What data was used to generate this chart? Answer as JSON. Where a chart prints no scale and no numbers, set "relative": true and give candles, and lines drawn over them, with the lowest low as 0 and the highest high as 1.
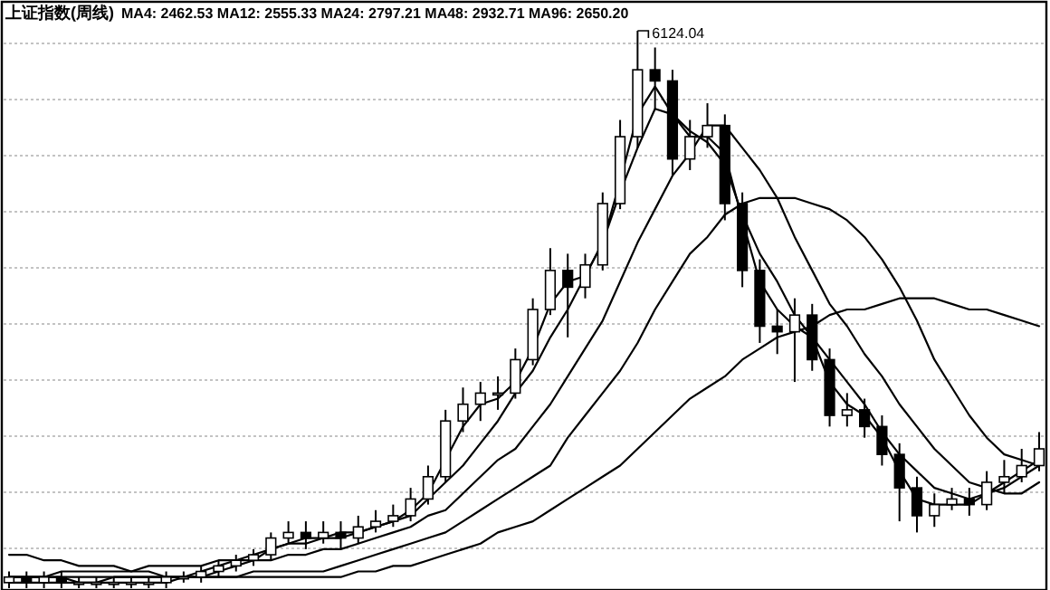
{
  "chart_data": {
    "type": "candlestick",
    "title": "上证指数(周线)",
    "subtitle": "MA4: 2462.53  MA12: 2555.33  MA24: 2797.21  MA48: 2932.71  MA96: 2650.20",
    "relative": true,
    "grid": "y",
    "color": "#000000",
    "categories": [
      null,
      null,
      null,
      null,
      null,
      null,
      null,
      null,
      null,
      null,
      null,
      null,
      null,
      null,
      null,
      null,
      null,
      null,
      null,
      null,
      null,
      null,
      null,
      null,
      null,
      null,
      null,
      null,
      null,
      null,
      null,
      null,
      null,
      null,
      null,
      null,
      null,
      null,
      null,
      null,
      null,
      null,
      null,
      null,
      null,
      null,
      null,
      null,
      null,
      null,
      null,
      null,
      null,
      null,
      null,
      null,
      null,
      null,
      null,
      null
    ],
    "ohlc": [
      [
        0.01,
        0.03,
        0.0,
        0.02
      ],
      [
        0.02,
        0.03,
        0.0,
        0.01
      ],
      [
        0.01,
        0.03,
        0.0,
        0.02
      ],
      [
        0.02,
        0.03,
        0.0,
        0.01
      ],
      [
        0.01,
        0.02,
        0.0,
        0.01
      ],
      [
        0.01,
        0.02,
        0.0,
        0.01
      ],
      [
        0.01,
        0.02,
        0.0,
        0.01
      ],
      [
        0.01,
        0.02,
        0.0,
        0.01
      ],
      [
        0.01,
        0.02,
        0.0,
        0.01
      ],
      [
        0.01,
        0.03,
        0.0,
        0.02
      ],
      [
        0.02,
        0.03,
        0.01,
        0.02
      ],
      [
        0.02,
        0.04,
        0.01,
        0.03
      ],
      [
        0.03,
        0.05,
        0.02,
        0.04
      ],
      [
        0.04,
        0.06,
        0.03,
        0.05
      ],
      [
        0.05,
        0.07,
        0.04,
        0.06
      ],
      [
        0.06,
        0.1,
        0.05,
        0.09
      ],
      [
        0.09,
        0.12,
        0.08,
        0.1
      ],
      [
        0.1,
        0.12,
        0.07,
        0.09
      ],
      [
        0.09,
        0.12,
        0.08,
        0.1
      ],
      [
        0.1,
        0.12,
        0.07,
        0.09
      ],
      [
        0.09,
        0.13,
        0.08,
        0.11
      ],
      [
        0.11,
        0.14,
        0.1,
        0.12
      ],
      [
        0.12,
        0.15,
        0.11,
        0.13
      ],
      [
        0.13,
        0.18,
        0.12,
        0.16
      ],
      [
        0.16,
        0.22,
        0.15,
        0.2
      ],
      [
        0.2,
        0.32,
        0.19,
        0.3
      ],
      [
        0.3,
        0.36,
        0.28,
        0.33
      ],
      [
        0.33,
        0.37,
        0.3,
        0.35
      ],
      [
        0.35,
        0.38,
        0.32,
        0.35
      ],
      [
        0.35,
        0.43,
        0.34,
        0.41
      ],
      [
        0.41,
        0.52,
        0.4,
        0.5
      ],
      [
        0.5,
        0.61,
        0.49,
        0.57
      ],
      [
        0.57,
        0.6,
        0.45,
        0.54
      ],
      [
        0.54,
        0.6,
        0.52,
        0.58
      ],
      [
        0.58,
        0.71,
        0.57,
        0.69
      ],
      [
        0.69,
        0.84,
        0.68,
        0.81
      ],
      [
        0.81,
        1.0,
        0.79,
        0.93
      ],
      [
        0.93,
        0.97,
        0.86,
        0.91
      ],
      [
        0.91,
        0.93,
        0.74,
        0.77
      ],
      [
        0.77,
        0.84,
        0.75,
        0.81
      ],
      [
        0.81,
        0.87,
        0.79,
        0.83
      ],
      [
        0.83,
        0.85,
        0.66,
        0.69
      ],
      [
        0.69,
        0.71,
        0.54,
        0.57
      ],
      [
        0.57,
        0.59,
        0.44,
        0.47
      ],
      [
        0.47,
        0.5,
        0.42,
        0.46
      ],
      [
        0.46,
        0.52,
        0.37,
        0.49
      ],
      [
        0.49,
        0.51,
        0.39,
        0.41
      ],
      [
        0.41,
        0.43,
        0.29,
        0.31
      ],
      [
        0.31,
        0.35,
        0.29,
        0.32
      ],
      [
        0.32,
        0.34,
        0.27,
        0.29
      ],
      [
        0.29,
        0.31,
        0.22,
        0.24
      ],
      [
        0.24,
        0.26,
        0.12,
        0.18
      ],
      [
        0.18,
        0.2,
        0.1,
        0.13
      ],
      [
        0.13,
        0.17,
        0.11,
        0.15
      ],
      [
        0.15,
        0.18,
        0.14,
        0.16
      ],
      [
        0.16,
        0.18,
        0.13,
        0.15
      ],
      [
        0.15,
        0.21,
        0.14,
        0.19
      ],
      [
        0.19,
        0.23,
        0.17,
        0.2
      ],
      [
        0.2,
        0.25,
        0.19,
        0.22
      ],
      [
        0.22,
        0.28,
        0.21,
        0.25
      ]
    ],
    "series": [
      {
        "type": "line",
        "color": "#000000",
        "values": [
          0.02,
          0.02,
          0.02,
          0.02,
          0.01,
          0.01,
          0.01,
          0.01,
          0.01,
          0.01,
          0.02,
          0.02,
          0.03,
          0.04,
          0.05,
          0.07,
          0.08,
          0.09,
          0.09,
          0.1,
          0.1,
          0.11,
          0.12,
          0.14,
          0.17,
          0.23,
          0.29,
          0.33,
          0.34,
          0.37,
          0.43,
          0.51,
          0.55,
          0.56,
          0.62,
          0.73,
          0.85,
          0.9,
          0.85,
          0.81,
          0.81,
          0.78,
          0.66,
          0.55,
          0.5,
          0.47,
          0.45,
          0.37,
          0.33,
          0.31,
          0.27,
          0.21,
          0.16,
          0.15,
          0.15,
          0.15,
          0.17,
          0.19,
          0.21,
          0.23
        ]
      },
      {
        "type": "line",
        "color": "#000000",
        "values": [
          0.02,
          0.02,
          0.02,
          0.02,
          0.02,
          0.02,
          0.02,
          0.02,
          0.02,
          0.02,
          0.02,
          0.03,
          0.04,
          0.05,
          0.06,
          0.07,
          0.08,
          0.08,
          0.09,
          0.09,
          0.1,
          0.11,
          0.12,
          0.13,
          0.16,
          0.19,
          0.22,
          0.26,
          0.3,
          0.35,
          0.39,
          0.45,
          0.5,
          0.56,
          0.62,
          0.71,
          0.79,
          0.86,
          0.85,
          0.82,
          0.8,
          0.76,
          0.67,
          0.6,
          0.55,
          0.49,
          0.45,
          0.41,
          0.37,
          0.33,
          0.28,
          0.24,
          0.21,
          0.18,
          0.17,
          0.16,
          0.17,
          0.18,
          0.2,
          0.22
        ]
      },
      {
        "type": "line",
        "color": "#000000",
        "values": [
          0.02,
          0.02,
          0.02,
          0.03,
          0.03,
          0.03,
          0.03,
          0.03,
          0.04,
          0.04,
          0.04,
          0.04,
          0.05,
          0.05,
          0.05,
          0.05,
          0.06,
          0.06,
          0.07,
          0.07,
          0.08,
          0.09,
          0.1,
          0.11,
          0.13,
          0.14,
          0.17,
          0.2,
          0.23,
          0.25,
          0.29,
          0.33,
          0.38,
          0.43,
          0.48,
          0.55,
          0.62,
          0.68,
          0.74,
          0.78,
          0.83,
          0.83,
          0.79,
          0.75,
          0.7,
          0.63,
          0.57,
          0.51,
          0.47,
          0.42,
          0.38,
          0.33,
          0.29,
          0.25,
          0.22,
          0.19,
          0.18,
          0.17,
          0.17,
          0.19
        ]
      },
      {
        "type": "line",
        "color": "#000000",
        "values": [
          0.01,
          0.01,
          0.01,
          0.01,
          0.01,
          0.01,
          0.02,
          0.02,
          0.02,
          0.02,
          0.02,
          0.02,
          0.02,
          0.02,
          0.03,
          0.03,
          0.03,
          0.03,
          0.03,
          0.04,
          0.05,
          0.06,
          0.07,
          0.08,
          0.09,
          0.1,
          0.12,
          0.14,
          0.16,
          0.18,
          0.2,
          0.22,
          0.27,
          0.31,
          0.35,
          0.39,
          0.44,
          0.5,
          0.55,
          0.6,
          0.63,
          0.67,
          0.69,
          0.7,
          0.7,
          0.7,
          0.69,
          0.68,
          0.66,
          0.63,
          0.59,
          0.54,
          0.48,
          0.41,
          0.36,
          0.31,
          0.27,
          0.24,
          0.23,
          0.22
        ]
      },
      {
        "type": "line",
        "color": "#000000",
        "values": [
          0.06,
          0.06,
          0.05,
          0.05,
          0.04,
          0.04,
          0.04,
          0.03,
          0.03,
          0.02,
          0.02,
          0.02,
          0.02,
          0.02,
          0.02,
          0.02,
          0.02,
          0.02,
          0.02,
          0.02,
          0.03,
          0.03,
          0.04,
          0.04,
          0.05,
          0.06,
          0.07,
          0.08,
          0.1,
          0.11,
          0.12,
          0.14,
          0.16,
          0.18,
          0.2,
          0.22,
          0.25,
          0.28,
          0.31,
          0.34,
          0.36,
          0.38,
          0.41,
          0.43,
          0.45,
          0.46,
          0.47,
          0.49,
          0.5,
          0.5,
          0.51,
          0.52,
          0.52,
          0.52,
          0.51,
          0.5,
          0.5,
          0.49,
          0.48,
          0.47
        ]
      }
    ],
    "annotations": [
      "6124.04"
    ]
  }
}
